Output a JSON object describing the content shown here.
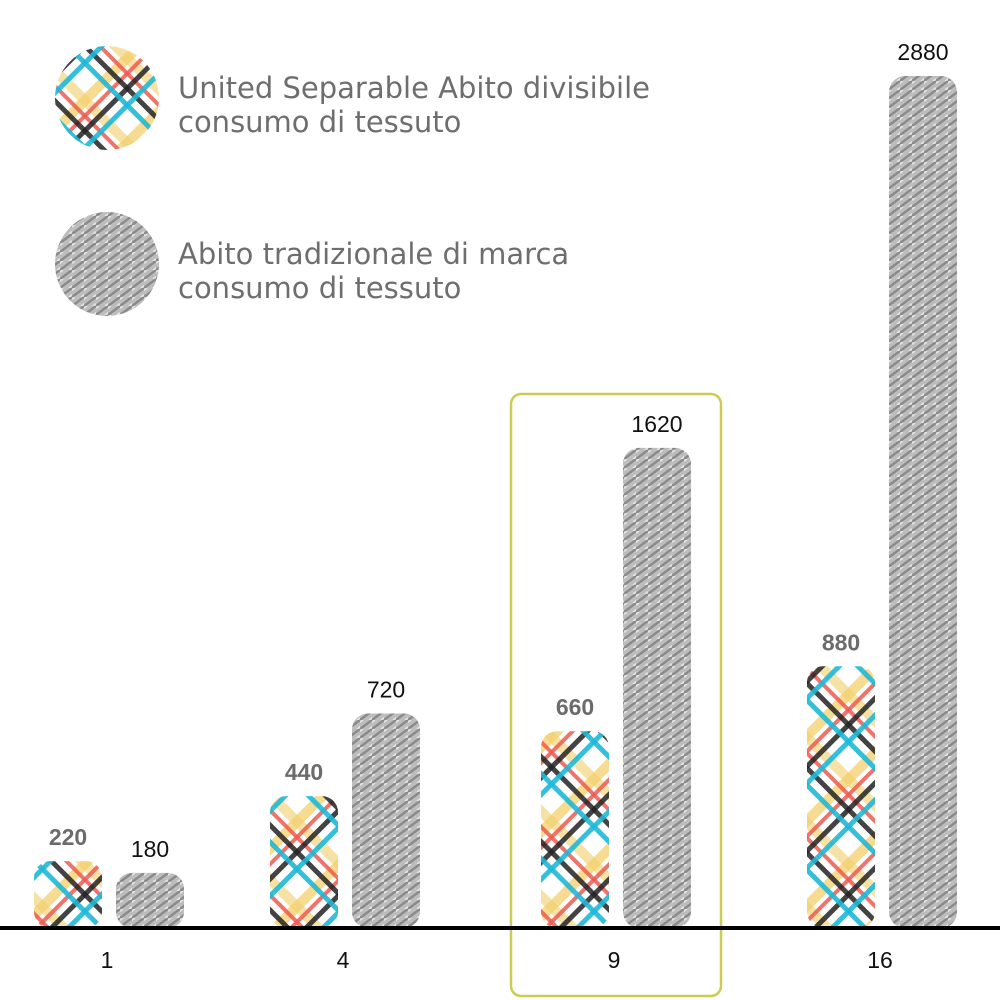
{
  "chart_data": {
    "type": "bar",
    "categories": [
      "1",
      "4",
      "9",
      "16"
    ],
    "series": [
      {
        "name": "United Separable Abito divisibile consumo di tessuto",
        "legend_lines": [
          "United Separable Abito divisibile",
          "consumo di tessuto"
        ],
        "values": [
          220,
          440,
          660,
          880
        ],
        "fill": "tartan-pattern"
      },
      {
        "name": "Abito tradizionale di marca consumo di tessuto",
        "legend_lines": [
          "Abito tradizionale di marca",
          "consumo di tessuto"
        ],
        "values": [
          180,
          720,
          1620,
          2880
        ],
        "fill": "gray-hatch-pattern"
      }
    ],
    "highlighted_category": "9",
    "legend_position": "top-left",
    "grid": false,
    "ylim": [
      0,
      2880
    ],
    "colors": {
      "tartan_red": "#ee5a4f",
      "tartan_cyan": "#1fb8d8",
      "tartan_yellow": "#f2cf6a",
      "tartan_dark": "#222222",
      "hatch_gray": "#9a9a9a",
      "highlight_border": "#cccc55",
      "baseline": "#000000"
    }
  }
}
